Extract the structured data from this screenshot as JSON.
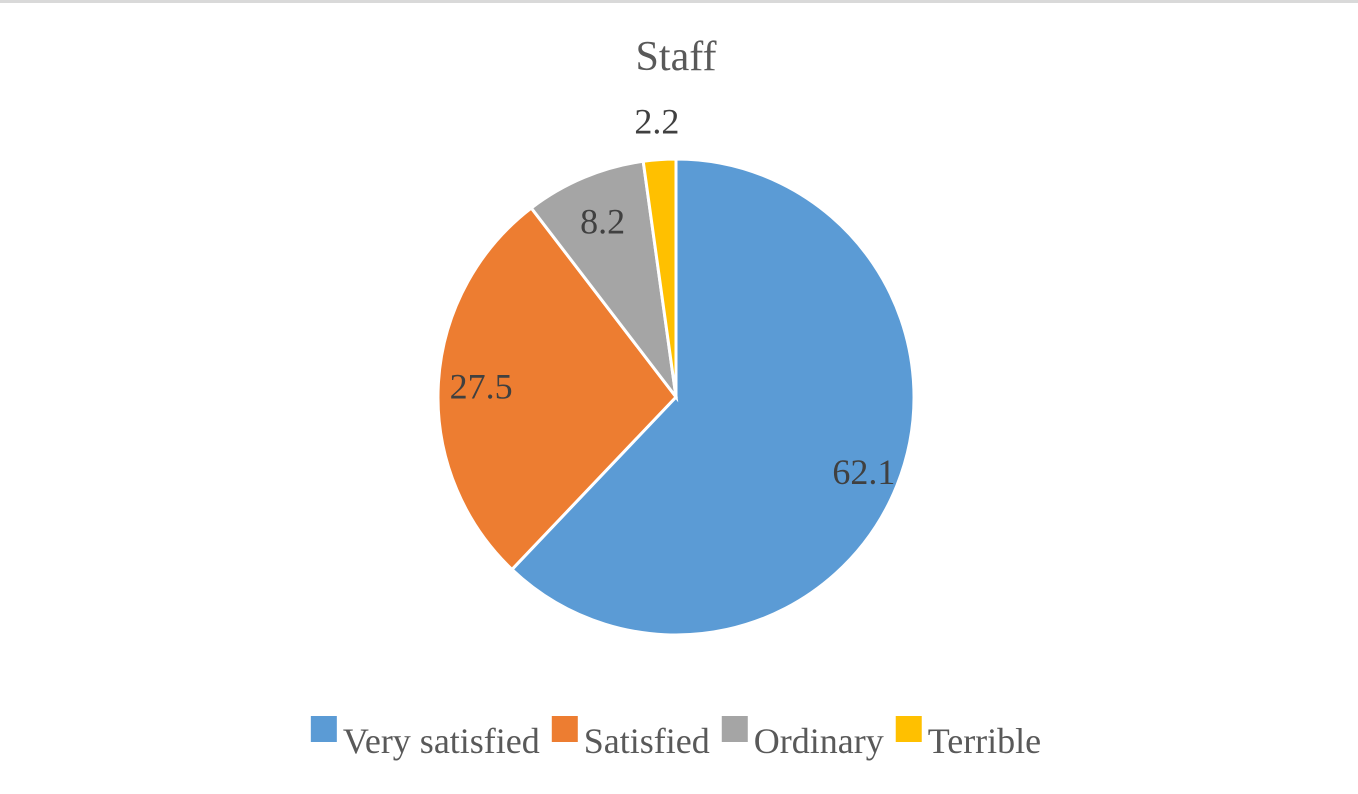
{
  "chart_data": {
    "type": "pie",
    "title": "Staff",
    "categories": [
      "Very satisfied",
      "Satisfied",
      "Ordinary",
      "Terrible"
    ],
    "values": [
      62.1,
      27.5,
      8.2,
      2.2
    ],
    "labels": [
      "62.1",
      "27.5",
      "8.2",
      "2.2"
    ],
    "colors": [
      "#5b9bd5",
      "#ed7d31",
      "#a5a5a5",
      "#ffc000"
    ],
    "start_angle_deg": 0,
    "direction": "clockwise",
    "legend_position": "bottom"
  }
}
